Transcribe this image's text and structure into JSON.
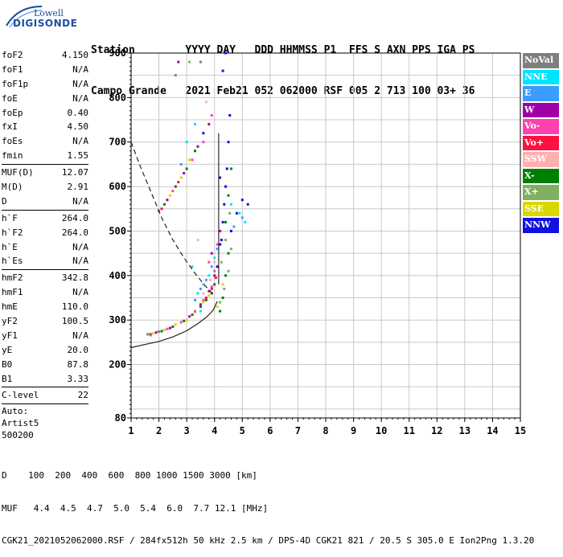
{
  "logo": {
    "line1": "Lowell",
    "line2": "DIGISONDE"
  },
  "header": {
    "row1": "Station        YYYY DAY   DDD HHMMSS P1  FFS S AXN PPS IGA PS",
    "row2": "Campo Grande   2021 Feb21 052 062000 RSF 005 2 713 100 03+ 36"
  },
  "params": {
    "group1": [
      {
        "name": "foF2",
        "value": "4.150"
      },
      {
        "name": "foF1",
        "value": "N/A"
      },
      {
        "name": "foF1p",
        "value": "N/A"
      },
      {
        "name": "foE",
        "value": "N/A"
      },
      {
        "name": "foEp",
        "value": "0.40"
      },
      {
        "name": "fxI",
        "value": "4.50"
      },
      {
        "name": "foEs",
        "value": "N/A"
      },
      {
        "name": "fmin",
        "value": "1.55"
      }
    ],
    "group2": [
      {
        "name": "MUF(D)",
        "value": "12.07"
      },
      {
        "name": "M(D)",
        "value": "2.91"
      },
      {
        "name": "D",
        "value": "N/A"
      }
    ],
    "group3": [
      {
        "name": "h`F",
        "value": "264.0"
      },
      {
        "name": "h`F2",
        "value": "264.0"
      },
      {
        "name": "h`E",
        "value": "N/A"
      },
      {
        "name": "h`Es",
        "value": "N/A"
      }
    ],
    "group4": [
      {
        "name": "hmF2",
        "value": "342.8"
      },
      {
        "name": "hmF1",
        "value": "N/A"
      },
      {
        "name": "hmE",
        "value": "110.0"
      },
      {
        "name": "yF2",
        "value": "100.5"
      },
      {
        "name": "yF1",
        "value": "N/A"
      },
      {
        "name": "yE",
        "value": "20.0"
      },
      {
        "name": "B0",
        "value": "87.8"
      },
      {
        "name": "B1",
        "value": "3.33"
      }
    ],
    "group5": [
      {
        "name": "C-level",
        "value": "22"
      }
    ],
    "auto": [
      "Auto:",
      "Artist5",
      "500200"
    ]
  },
  "legend": [
    {
      "label": "NoVal",
      "color": "#7f7f7f"
    },
    {
      "label": "NNE",
      "color": "#00e5ff"
    },
    {
      "label": "E",
      "color": "#3b9cff"
    },
    {
      "label": "W",
      "color": "#a000a8"
    },
    {
      "label": "Vo-",
      "color": "#ff40b0"
    },
    {
      "label": "Vo+",
      "color": "#ff1040"
    },
    {
      "label": "SSW",
      "color": "#ffb0b0"
    },
    {
      "label": "X-",
      "color": "#008000"
    },
    {
      "label": "X+",
      "color": "#80b060"
    },
    {
      "label": "SSE",
      "color": "#d8d800"
    },
    {
      "label": "NNW",
      "color": "#1010e0"
    }
  ],
  "footer": {
    "row1": "D    100  200  400  600  800 1000 1500 3000 [km]",
    "row2": "MUF   4.4  4.5  4.7  5.0  5.4  6.0  7.7 12.1 [MHz]",
    "row3": "CGK21_2021052062000.RSF / 284fx512h 50 kHz 2.5 km / DPS-4D CGK21 821 / 20.5 S 305.0 E Ion2Png 1.3.20"
  },
  "chart_data": {
    "type": "scatter",
    "xlim": [
      1,
      15
    ],
    "ylim": [
      80,
      900
    ],
    "x_ticks": [
      1,
      2,
      3,
      4,
      5,
      6,
      7,
      8,
      9,
      10,
      11,
      12,
      13,
      14,
      15
    ],
    "y_ticks": [
      80,
      200,
      300,
      400,
      500,
      600,
      700,
      800,
      900
    ],
    "grid": true,
    "curves": [
      {
        "style": "solid",
        "points": [
          [
            1.0,
            238
          ],
          [
            1.5,
            245
          ],
          [
            2.0,
            252
          ],
          [
            2.5,
            262
          ],
          [
            3.0,
            276
          ],
          [
            3.4,
            292
          ],
          [
            3.7,
            306
          ],
          [
            3.95,
            322
          ],
          [
            4.1,
            342
          ]
        ]
      },
      {
        "style": "dashed",
        "points": [
          [
            1.0,
            700
          ],
          [
            1.3,
            650
          ],
          [
            1.7,
            590
          ],
          [
            2.1,
            530
          ],
          [
            2.5,
            480
          ],
          [
            2.9,
            440
          ],
          [
            3.3,
            405
          ],
          [
            3.65,
            378
          ],
          [
            4.0,
            355
          ]
        ]
      }
    ],
    "vertical_line_x": 4.15,
    "series": [
      {
        "color": "#008000",
        "points": [
          [
            1.7,
            268
          ],
          [
            2.1,
            275
          ],
          [
            2.5,
            285
          ],
          [
            2.9,
            298
          ],
          [
            3.2,
            312
          ],
          [
            3.5,
            330
          ],
          [
            3.7,
            345
          ],
          [
            3.9,
            360
          ],
          [
            4.0,
            380
          ],
          [
            4.2,
            320
          ],
          [
            4.3,
            350
          ],
          [
            4.4,
            400
          ],
          [
            4.5,
            450
          ],
          [
            2.2,
            560
          ],
          [
            2.6,
            600
          ],
          [
            3.0,
            640
          ],
          [
            3.3,
            680
          ],
          [
            4.4,
            520
          ],
          [
            4.5,
            580
          ],
          [
            4.6,
            640
          ]
        ]
      },
      {
        "color": "#d8d800",
        "points": [
          [
            1.8,
            270
          ],
          [
            2.2,
            278
          ],
          [
            2.6,
            290
          ],
          [
            3.0,
            300
          ],
          [
            3.3,
            318
          ],
          [
            3.6,
            340
          ],
          [
            3.8,
            355
          ],
          [
            4.1,
            330
          ],
          [
            4.3,
            380
          ],
          [
            2.4,
            580
          ],
          [
            2.8,
            620
          ],
          [
            3.1,
            660
          ]
        ]
      },
      {
        "color": "#1010e0",
        "points": [
          [
            4.1,
            420
          ],
          [
            4.2,
            470
          ],
          [
            4.3,
            520
          ],
          [
            4.35,
            560
          ],
          [
            4.4,
            600
          ],
          [
            4.45,
            640
          ],
          [
            4.5,
            700
          ],
          [
            4.55,
            760
          ],
          [
            4.3,
            860
          ],
          [
            4.4,
            900
          ],
          [
            4.6,
            500
          ],
          [
            4.8,
            540
          ],
          [
            5.0,
            570
          ],
          [
            5.2,
            560
          ],
          [
            4.25,
            480
          ],
          [
            4.2,
            620
          ],
          [
            3.6,
            720
          ]
        ]
      },
      {
        "color": "#ff40b0",
        "points": [
          [
            1.7,
            266
          ],
          [
            2.3,
            280
          ],
          [
            2.8,
            295
          ],
          [
            3.3,
            320
          ],
          [
            3.6,
            345
          ],
          [
            3.9,
            375
          ],
          [
            4.0,
            410
          ],
          [
            3.8,
            430
          ],
          [
            4.1,
            470
          ],
          [
            2.0,
            545
          ],
          [
            2.5,
            590
          ],
          [
            3.2,
            660
          ],
          [
            3.6,
            700
          ],
          [
            3.9,
            760
          ]
        ]
      },
      {
        "color": "#a000a8",
        "points": [
          [
            1.9,
            272
          ],
          [
            2.4,
            282
          ],
          [
            3.1,
            308
          ],
          [
            3.5,
            335
          ],
          [
            3.8,
            365
          ],
          [
            4.0,
            400
          ],
          [
            3.9,
            450
          ],
          [
            4.2,
            500
          ],
          [
            2.3,
            570
          ],
          [
            2.9,
            630
          ],
          [
            3.4,
            690
          ],
          [
            3.8,
            740
          ],
          [
            2.7,
            880
          ]
        ]
      },
      {
        "color": "#00e5ff",
        "points": [
          [
            3.4,
            360
          ],
          [
            3.6,
            380
          ],
          [
            3.8,
            400
          ],
          [
            4.0,
            440
          ],
          [
            3.5,
            320
          ],
          [
            3.2,
            420
          ],
          [
            4.6,
            560
          ],
          [
            4.9,
            540
          ],
          [
            5.1,
            520
          ],
          [
            3.0,
            700
          ],
          [
            3.3,
            740
          ]
        ]
      },
      {
        "color": "#3b9cff",
        "points": [
          [
            3.5,
            370
          ],
          [
            3.7,
            390
          ],
          [
            3.9,
            420
          ],
          [
            4.1,
            460
          ],
          [
            3.3,
            345
          ],
          [
            4.7,
            510
          ],
          [
            5.0,
            530
          ],
          [
            2.8,
            650
          ]
        ]
      },
      {
        "color": "#80b060",
        "points": [
          [
            4.2,
            340
          ],
          [
            4.35,
            370
          ],
          [
            4.5,
            410
          ],
          [
            4.6,
            460
          ],
          [
            4.25,
            430
          ],
          [
            4.4,
            480
          ],
          [
            4.55,
            540
          ],
          [
            3.1,
            880
          ]
        ]
      },
      {
        "color": "#ff1040",
        "points": [
          [
            3.7,
            350
          ],
          [
            3.9,
            370
          ],
          [
            4.05,
            395
          ],
          [
            2.1,
            550
          ],
          [
            2.7,
            610
          ]
        ]
      },
      {
        "color": "#ffb0b0",
        "points": [
          [
            3.6,
            360
          ],
          [
            3.85,
            390
          ],
          [
            4.0,
            430
          ],
          [
            3.4,
            480
          ],
          [
            3.7,
            790
          ]
        ]
      },
      {
        "color": "#7f7f7f",
        "points": [
          [
            1.6,
            268
          ],
          [
            2.0,
            274
          ],
          [
            3.5,
            880
          ],
          [
            2.6,
            850
          ]
        ]
      }
    ]
  }
}
